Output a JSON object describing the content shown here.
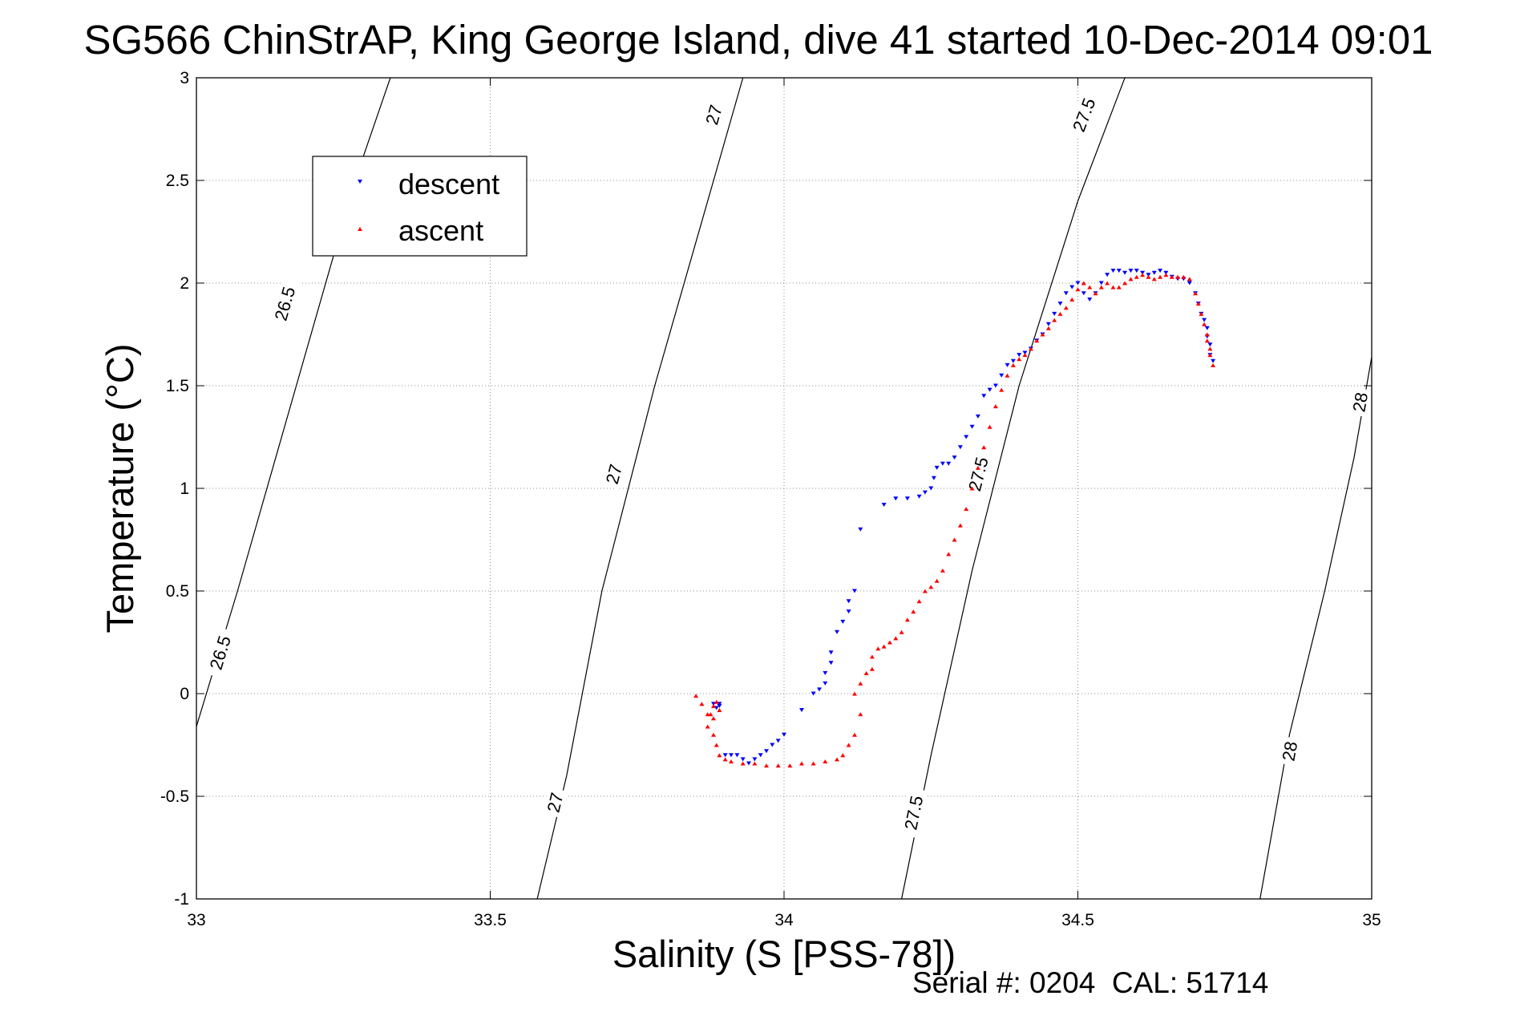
{
  "chart_data": {
    "type": "scatter",
    "title": "SG566 ChinStrAP, King George Island, dive 41 started 10-Dec-2014 09:01",
    "xlabel": "Salinity (S [PSS-78])",
    "ylabel": "Temperature (°C)",
    "xlim": [
      33,
      35
    ],
    "ylim": [
      -1,
      3
    ],
    "x_ticks": [
      "33",
      "33.5",
      "34",
      "34.5",
      "35"
    ],
    "x_tick_values": [
      33,
      33.5,
      34,
      34.5,
      35
    ],
    "y_ticks": [
      "-1",
      "-0.5",
      "0",
      "0.5",
      "1",
      "1.5",
      "2",
      "2.5",
      "3"
    ],
    "y_tick_values": [
      -1,
      -0.5,
      0,
      0.5,
      1,
      1.5,
      2,
      2.5,
      3
    ],
    "grid": true,
    "legend_position": "top-left",
    "footer": "Serial #: 0204  CAL: 51714",
    "density_contours": [
      {
        "value": "26.5",
        "points": [
          [
            33.0,
            -0.16
          ],
          [
            33.07,
            0.5
          ],
          [
            33.14,
            1.2
          ],
          [
            33.2,
            1.8
          ],
          [
            33.27,
            2.5
          ],
          [
            33.33,
            3.0
          ]
        ],
        "labels": [
          {
            "x": 33.04,
            "y": 0.2
          },
          {
            "x": 33.15,
            "y": 1.9
          }
        ]
      },
      {
        "value": "27",
        "points": [
          [
            33.58,
            -1.0
          ],
          [
            33.63,
            -0.4
          ],
          [
            33.69,
            0.5
          ],
          [
            33.78,
            1.5
          ],
          [
            33.85,
            2.2
          ],
          [
            33.93,
            3.0
          ]
        ],
        "labels": [
          {
            "x": 33.61,
            "y": -0.53
          },
          {
            "x": 33.71,
            "y": 1.07
          },
          {
            "x": 33.88,
            "y": 2.82
          }
        ]
      },
      {
        "value": "27.5",
        "points": [
          [
            34.2,
            -1.0
          ],
          [
            34.25,
            -0.3
          ],
          [
            34.32,
            0.6
          ],
          [
            34.4,
            1.5
          ],
          [
            34.5,
            2.4
          ],
          [
            34.58,
            3.0
          ]
        ],
        "labels": [
          {
            "x": 34.22,
            "y": -0.58
          },
          {
            "x": 34.33,
            "y": 1.07
          },
          {
            "x": 34.51,
            "y": 2.82
          }
        ]
      },
      {
        "value": "28",
        "points": [
          [
            34.81,
            -1.0
          ],
          [
            34.86,
            -0.2
          ],
          [
            34.92,
            0.5
          ],
          [
            34.97,
            1.15
          ],
          [
            35.0,
            1.64
          ]
        ],
        "labels": [
          {
            "x": 34.86,
            "y": -0.28
          },
          {
            "x": 34.98,
            "y": 1.42
          }
        ]
      }
    ],
    "series": [
      {
        "name": "descent",
        "color": "#0000ff",
        "marker": "down-triangle",
        "points": [
          [
            33.88,
            -0.05
          ],
          [
            33.89,
            -0.06
          ],
          [
            33.885,
            -0.07
          ],
          [
            33.89,
            -0.05
          ],
          [
            33.9,
            -0.3
          ],
          [
            33.91,
            -0.3
          ],
          [
            33.92,
            -0.3
          ],
          [
            33.93,
            -0.32
          ],
          [
            33.94,
            -0.34
          ],
          [
            33.95,
            -0.32
          ],
          [
            33.96,
            -0.3
          ],
          [
            33.97,
            -0.28
          ],
          [
            33.98,
            -0.25
          ],
          [
            33.99,
            -0.23
          ],
          [
            34.0,
            -0.2
          ],
          [
            34.03,
            -0.08
          ],
          [
            34.05,
            0.0
          ],
          [
            34.06,
            0.02
          ],
          [
            34.07,
            0.05
          ],
          [
            34.07,
            0.1
          ],
          [
            34.08,
            0.15
          ],
          [
            34.08,
            0.2
          ],
          [
            34.09,
            0.3
          ],
          [
            34.1,
            0.35
          ],
          [
            34.11,
            0.4
          ],
          [
            34.11,
            0.45
          ],
          [
            34.12,
            0.5
          ],
          [
            34.13,
            0.8
          ],
          [
            34.17,
            0.92
          ],
          [
            34.19,
            0.95
          ],
          [
            34.21,
            0.95
          ],
          [
            34.23,
            0.96
          ],
          [
            34.24,
            0.98
          ],
          [
            34.25,
            1.0
          ],
          [
            34.255,
            1.05
          ],
          [
            34.26,
            1.1
          ],
          [
            34.27,
            1.12
          ],
          [
            34.28,
            1.12
          ],
          [
            34.29,
            1.15
          ],
          [
            34.3,
            1.2
          ],
          [
            34.31,
            1.25
          ],
          [
            34.32,
            1.3
          ],
          [
            34.33,
            1.35
          ],
          [
            34.34,
            1.45
          ],
          [
            34.35,
            1.48
          ],
          [
            34.36,
            1.5
          ],
          [
            34.37,
            1.55
          ],
          [
            34.38,
            1.6
          ],
          [
            34.39,
            1.62
          ],
          [
            34.4,
            1.65
          ],
          [
            34.41,
            1.66
          ],
          [
            34.42,
            1.68
          ],
          [
            34.43,
            1.72
          ],
          [
            34.44,
            1.75
          ],
          [
            34.45,
            1.8
          ],
          [
            34.46,
            1.85
          ],
          [
            34.47,
            1.9
          ],
          [
            34.48,
            1.95
          ],
          [
            34.49,
            1.98
          ],
          [
            34.5,
            2.0
          ],
          [
            34.51,
            1.95
          ],
          [
            34.52,
            1.92
          ],
          [
            34.53,
            1.95
          ],
          [
            34.54,
            2.0
          ],
          [
            34.55,
            2.04
          ],
          [
            34.56,
            2.06
          ],
          [
            34.57,
            2.06
          ],
          [
            34.58,
            2.05
          ],
          [
            34.59,
            2.06
          ],
          [
            34.6,
            2.06
          ],
          [
            34.61,
            2.05
          ],
          [
            34.62,
            2.04
          ],
          [
            34.63,
            2.05
          ],
          [
            34.64,
            2.06
          ],
          [
            34.65,
            2.05
          ],
          [
            34.66,
            2.03
          ],
          [
            34.67,
            2.02
          ],
          [
            34.68,
            2.02
          ],
          [
            34.69,
            2.0
          ],
          [
            34.7,
            1.95
          ],
          [
            34.705,
            1.9
          ],
          [
            34.71,
            1.85
          ],
          [
            34.715,
            1.82
          ],
          [
            34.72,
            1.78
          ],
          [
            34.72,
            1.74
          ],
          [
            34.725,
            1.7
          ],
          [
            34.725,
            1.65
          ],
          [
            34.73,
            1.62
          ]
        ]
      },
      {
        "name": "ascent",
        "color": "#ff0000",
        "marker": "up-triangle",
        "points": [
          [
            33.85,
            -0.01
          ],
          [
            33.86,
            -0.05
          ],
          [
            33.87,
            -0.1
          ],
          [
            33.88,
            -0.12
          ],
          [
            33.89,
            -0.08
          ],
          [
            33.88,
            -0.06
          ],
          [
            33.885,
            -0.04
          ],
          [
            33.875,
            -0.1
          ],
          [
            33.87,
            -0.16
          ],
          [
            33.88,
            -0.2
          ],
          [
            33.885,
            -0.25
          ],
          [
            33.89,
            -0.3
          ],
          [
            33.9,
            -0.32
          ],
          [
            33.91,
            -0.33
          ],
          [
            33.93,
            -0.34
          ],
          [
            33.95,
            -0.34
          ],
          [
            33.97,
            -0.35
          ],
          [
            33.99,
            -0.35
          ],
          [
            34.01,
            -0.35
          ],
          [
            34.03,
            -0.34
          ],
          [
            34.05,
            -0.34
          ],
          [
            34.07,
            -0.33
          ],
          [
            34.09,
            -0.32
          ],
          [
            34.1,
            -0.3
          ],
          [
            34.11,
            -0.25
          ],
          [
            34.12,
            -0.2
          ],
          [
            34.13,
            -0.1
          ],
          [
            34.12,
            0.0
          ],
          [
            34.13,
            0.05
          ],
          [
            34.14,
            0.1
          ],
          [
            34.15,
            0.12
          ],
          [
            34.15,
            0.18
          ],
          [
            34.16,
            0.22
          ],
          [
            34.17,
            0.23
          ],
          [
            34.18,
            0.25
          ],
          [
            34.19,
            0.27
          ],
          [
            34.2,
            0.3
          ],
          [
            34.21,
            0.36
          ],
          [
            34.22,
            0.4
          ],
          [
            34.23,
            0.45
          ],
          [
            34.24,
            0.5
          ],
          [
            34.25,
            0.52
          ],
          [
            34.26,
            0.55
          ],
          [
            34.27,
            0.6
          ],
          [
            34.28,
            0.68
          ],
          [
            34.29,
            0.75
          ],
          [
            34.3,
            0.82
          ],
          [
            34.31,
            0.9
          ],
          [
            34.32,
            1.0
          ],
          [
            34.33,
            1.1
          ],
          [
            34.34,
            1.2
          ],
          [
            34.35,
            1.3
          ],
          [
            34.36,
            1.4
          ],
          [
            34.37,
            1.48
          ],
          [
            34.38,
            1.55
          ],
          [
            34.39,
            1.6
          ],
          [
            34.4,
            1.63
          ],
          [
            34.41,
            1.65
          ],
          [
            34.42,
            1.68
          ],
          [
            34.43,
            1.72
          ],
          [
            34.44,
            1.75
          ],
          [
            34.45,
            1.78
          ],
          [
            34.46,
            1.82
          ],
          [
            34.47,
            1.85
          ],
          [
            34.48,
            1.88
          ],
          [
            34.49,
            1.92
          ],
          [
            34.5,
            1.97
          ],
          [
            34.51,
            2.0
          ],
          [
            34.52,
            1.98
          ],
          [
            34.53,
            1.95
          ],
          [
            34.54,
            1.98
          ],
          [
            34.55,
            2.0
          ],
          [
            34.56,
            1.98
          ],
          [
            34.57,
            1.98
          ],
          [
            34.58,
            2.0
          ],
          [
            34.59,
            2.02
          ],
          [
            34.6,
            2.03
          ],
          [
            34.61,
            2.04
          ],
          [
            34.62,
            2.03
          ],
          [
            34.63,
            2.02
          ],
          [
            34.64,
            2.03
          ],
          [
            34.65,
            2.04
          ],
          [
            34.66,
            2.03
          ],
          [
            34.67,
            2.03
          ],
          [
            34.68,
            2.03
          ],
          [
            34.69,
            2.02
          ],
          [
            34.7,
            1.95
          ],
          [
            34.705,
            1.9
          ],
          [
            34.71,
            1.85
          ],
          [
            34.715,
            1.8
          ],
          [
            34.72,
            1.75
          ],
          [
            34.72,
            1.72
          ],
          [
            34.725,
            1.68
          ],
          [
            34.725,
            1.65
          ],
          [
            34.73,
            1.6
          ]
        ]
      }
    ]
  }
}
